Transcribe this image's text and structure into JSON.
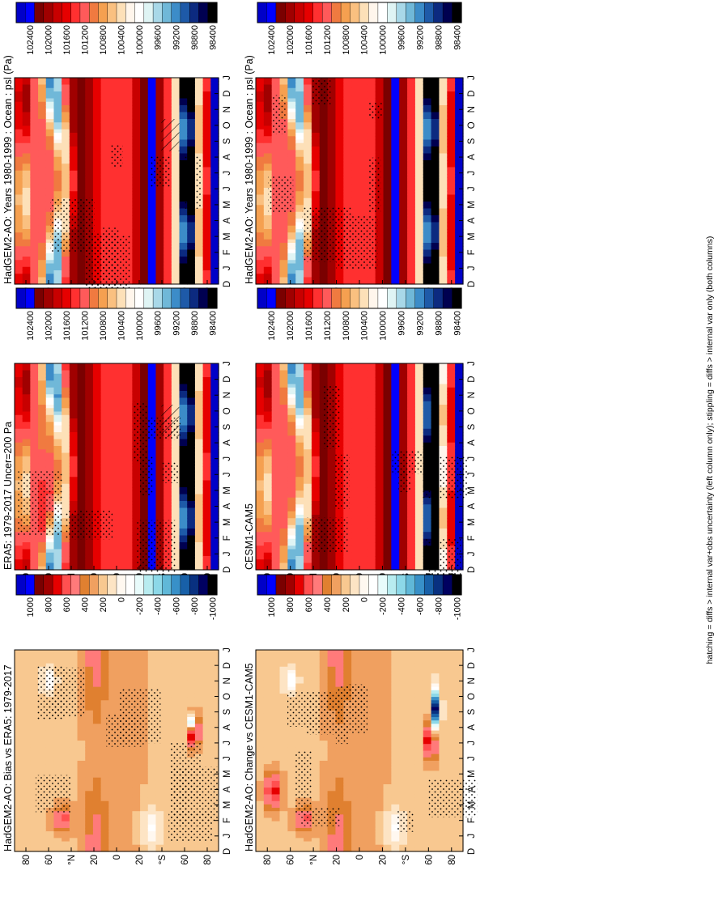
{
  "footer": "hatching = diffs > internal var+obs uncertainty (left column only); stippling = diffs > internal var only (both columns)",
  "colors": {
    "abs_scale": [
      "#0000c8",
      "#0000ff",
      "#7a0000",
      "#a00000",
      "#c80000",
      "#e60000",
      "#ff3030",
      "#ff5a5a",
      "#f07a40",
      "#f5a050",
      "#fac080",
      "#fde0b8",
      "#fff6ec",
      "#ffffff",
      "#dff4f4",
      "#a8d8e8",
      "#70b8d8",
      "#3c8cc8",
      "#1e5aa8",
      "#0c2a80",
      "#000050",
      "#000000"
    ],
    "diff_scale": [
      "#0000c8",
      "#0000ff",
      "#7a0000",
      "#a00000",
      "#e60000",
      "#ff5050",
      "#ff7a7a",
      "#e08030",
      "#f0a060",
      "#f8c890",
      "#fde4c4",
      "#fff8f0",
      "#ffffff",
      "#e8fbfb",
      "#b8ecf0",
      "#8cd8e8",
      "#60b8d8",
      "#3890c8",
      "#1860a8",
      "#083080",
      "#000060",
      "#000000"
    ]
  },
  "chart_data": [
    {
      "type": "heatmap",
      "panel": "top-left",
      "title": "HadGEM2-AO: Years 1980-1999 : Ocean : psl (Pa)",
      "x_ticks": [
        "D",
        "J",
        "F",
        "M",
        "A",
        "M",
        "J",
        "J",
        "A",
        "S",
        "O",
        "N",
        "D",
        "J"
      ],
      "y_ticks": [
        "80",
        "60",
        "°N",
        "20",
        "0",
        "20",
        "°S",
        "60",
        "80"
      ],
      "colorbar_labels": [
        "102400",
        "102000",
        "101600",
        "101200",
        "100800",
        "100400",
        "100000",
        "99600",
        "99200",
        "98800",
        "98400"
      ],
      "ylim": [
        -90,
        90
      ],
      "variant": "model"
    },
    {
      "type": "heatmap",
      "panel": "top-right",
      "title": "HadGEM2-AO: Years 1980-1999 : Ocean : psl (Pa)",
      "x_ticks": [
        "D",
        "J",
        "F",
        "M",
        "A",
        "M",
        "J",
        "J",
        "A",
        "S",
        "O",
        "N",
        "D",
        "J"
      ],
      "y_ticks": [
        "80",
        "60",
        "°N",
        "20",
        "0",
        "20",
        "°S",
        "60",
        "80"
      ],
      "colorbar_labels": [
        "102400",
        "102000",
        "101600",
        "101200",
        "100800",
        "100400",
        "100000",
        "99600",
        "99200",
        "98800",
        "98400"
      ],
      "ylim": [
        -90,
        90
      ],
      "variant": "model"
    },
    {
      "type": "heatmap",
      "panel": "middle-left",
      "title": "ERA5: 1979-2017 Uncer=200 Pa",
      "x_ticks": [
        "D",
        "J",
        "F",
        "M",
        "A",
        "M",
        "J",
        "J",
        "A",
        "S",
        "O",
        "N",
        "D",
        "J"
      ],
      "y_ticks": [
        "80",
        "60",
        "°N",
        "20",
        "0",
        "20",
        "°S",
        "60",
        "80"
      ],
      "colorbar_labels": [
        "102400",
        "102000",
        "101600",
        "101200",
        "100800",
        "100400",
        "100000",
        "99600",
        "99200",
        "98800",
        "98400"
      ],
      "ylim": [
        -90,
        90
      ],
      "variant": "obs"
    },
    {
      "type": "heatmap",
      "panel": "middle-right",
      "title": "CESM1-CAM5",
      "x_ticks": [
        "D",
        "J",
        "F",
        "M",
        "A",
        "M",
        "J",
        "J",
        "A",
        "S",
        "O",
        "N",
        "D",
        "J"
      ],
      "y_ticks": [
        "80",
        "60",
        "°N",
        "20",
        "0",
        "20",
        "°S",
        "60",
        "80"
      ],
      "colorbar_labels": [
        "102400",
        "102000",
        "101600",
        "101200",
        "100800",
        "100400",
        "100000",
        "99600",
        "99200",
        "98800",
        "98400"
      ],
      "ylim": [
        -90,
        90
      ],
      "variant": "model2"
    },
    {
      "type": "heatmap",
      "panel": "bottom-left",
      "title": "HadGEM2-AO: Bias vs ERA5: 1979-2017",
      "x_ticks": [
        "D",
        "J",
        "F",
        "M",
        "A",
        "M",
        "J",
        "J",
        "A",
        "S",
        "O",
        "N",
        "D",
        "J"
      ],
      "y_ticks": [
        "80",
        "60",
        "°N",
        "20",
        "0",
        "20",
        "°S",
        "60",
        "80"
      ],
      "colorbar_labels": [
        "1000",
        "800",
        "600",
        "400",
        "200",
        "0",
        "-200",
        "-400",
        "-600",
        "-800",
        "-1000"
      ],
      "ylim": [
        -90,
        90
      ],
      "variant": "bias"
    },
    {
      "type": "heatmap",
      "panel": "bottom-right",
      "title": "HadGEM2-AO: Change vs CESM1-CAM5",
      "x_ticks": [
        "D",
        "J",
        "F",
        "M",
        "A",
        "M",
        "J",
        "J",
        "A",
        "S",
        "O",
        "N",
        "D",
        "J"
      ],
      "y_ticks": [
        "80",
        "60",
        "°N",
        "20",
        "0",
        "20",
        "°S",
        "60",
        "80"
      ],
      "colorbar_labels": [
        "1000",
        "800",
        "600",
        "400",
        "200",
        "0",
        "-200",
        "-400",
        "-600",
        "-800",
        "-1000"
      ],
      "ylim": [
        -90,
        90
      ],
      "variant": "change"
    }
  ]
}
